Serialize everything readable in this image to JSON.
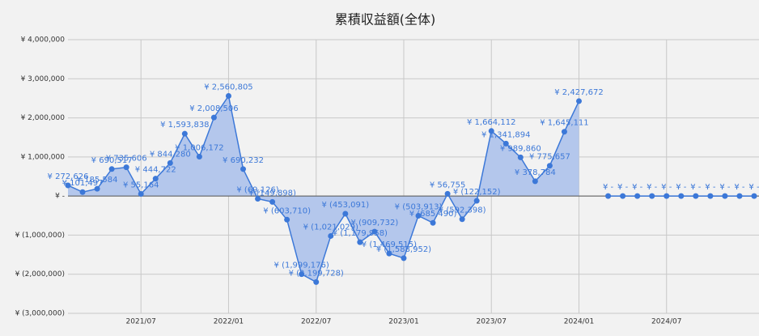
{
  "chart_data": {
    "type": "area",
    "title": "累積収益額(全体)",
    "categories": [
      "2021/02",
      "2021/03",
      "2021/04",
      "2021/05",
      "2021/06",
      "2021/07",
      "2021/08",
      "2021/09",
      "2021/10",
      "2021/11",
      "2021/12",
      "2022/01",
      "2022/02",
      "2022/03",
      "2022/04",
      "2022/05",
      "2022/06",
      "2022/07",
      "2022/08",
      "2022/09",
      "2022/10",
      "2022/11",
      "2022/12",
      "2023/01",
      "2023/02",
      "2023/03",
      "2023/04",
      "2023/05",
      "2023/06",
      "2023/07",
      "2023/08",
      "2023/09",
      "2023/10",
      "2023/11",
      "2023/12",
      "2024/01",
      "2024/02",
      "2024/03",
      "2024/04",
      "2024/05",
      "2024/06",
      "2024/07",
      "2024/08",
      "2024/09",
      "2024/10",
      "2024/11",
      "2024/12",
      "2025/01"
    ],
    "xticks": [
      "2021/07",
      "2022/01",
      "2022/07",
      "2023/01",
      "2023/07",
      "2024/01",
      "2024/07"
    ],
    "series": [
      {
        "name": "累積収益額",
        "color": "#3c78d8",
        "fill": "#b4c7ec",
        "values": [
          272626,
          101497,
          185584,
          690517,
          735606,
          55164,
          444722,
          844280,
          1593838,
          1006172,
          2008506,
          2560805,
          690232,
          -69126,
          -149898,
          -603710,
          -1999176,
          -2199728,
          -1021029,
          -453091,
          -1179958,
          -909732,
          -1469515,
          -1588952,
          -503913,
          -685490,
          56755,
          -592398,
          -122152,
          1664112,
          1341894,
          989860,
          378784,
          775657,
          1645111,
          2427672,
          null,
          0,
          0,
          0,
          0,
          0,
          0,
          0,
          0,
          0,
          0,
          0
        ],
        "value_labels": [
          "¥ 272,626",
          "¥ 101,497",
          "¥ 185,584",
          "¥ 690,517",
          "¥ 735,606",
          "¥ 55,164",
          "¥ 444,722",
          "¥ 844,280",
          "¥ 1,593,838",
          "¥ 1,006,172",
          "¥ 2,008,506",
          "¥ 2,560,805",
          "¥ 690,232",
          "¥ (69,126)",
          "¥ (149,898)",
          "¥ (603,710)",
          "¥ (1,999,176)",
          "¥ (2,199,728)",
          "¥ (1,021,029)",
          "¥ (453,091)",
          "¥ (1,179,958)",
          "¥ (909,732)",
          "¥ (1,469,515)",
          "¥ (1,588,952)",
          "¥ (503,913)",
          "¥ (685,490)",
          "¥ 56,755",
          "¥ (592,398)",
          "¥ (122,152)",
          "¥ 1,664,112",
          "¥ 1,341,894",
          "¥ 989,860",
          "¥ 378,784",
          "¥ 775,657",
          "¥ 1,645,111",
          "¥ 2,427,672",
          null,
          "¥ -",
          "¥ -",
          "¥ -",
          "¥ -",
          "¥ -",
          "¥ -",
          "¥ -",
          "¥ -",
          "¥ -",
          "¥ -",
          "¥ -"
        ]
      }
    ],
    "ylim": [
      -3000000,
      4000000
    ],
    "yticks": [
      {
        "value": -3000000,
        "label": "¥ (3,000,000)"
      },
      {
        "value": -2000000,
        "label": "¥ (2,000,000)"
      },
      {
        "value": -1000000,
        "label": "¥ (1,000,000)"
      },
      {
        "value": 0,
        "label": "¥ -"
      },
      {
        "value": 1000000,
        "label": "¥ 1,000,000"
      },
      {
        "value": 2000000,
        "label": "¥ 2,000,000"
      },
      {
        "value": 3000000,
        "label": "¥ 3,000,000"
      },
      {
        "value": 4000000,
        "label": "¥ 4,000,000"
      }
    ],
    "grid": true
  }
}
